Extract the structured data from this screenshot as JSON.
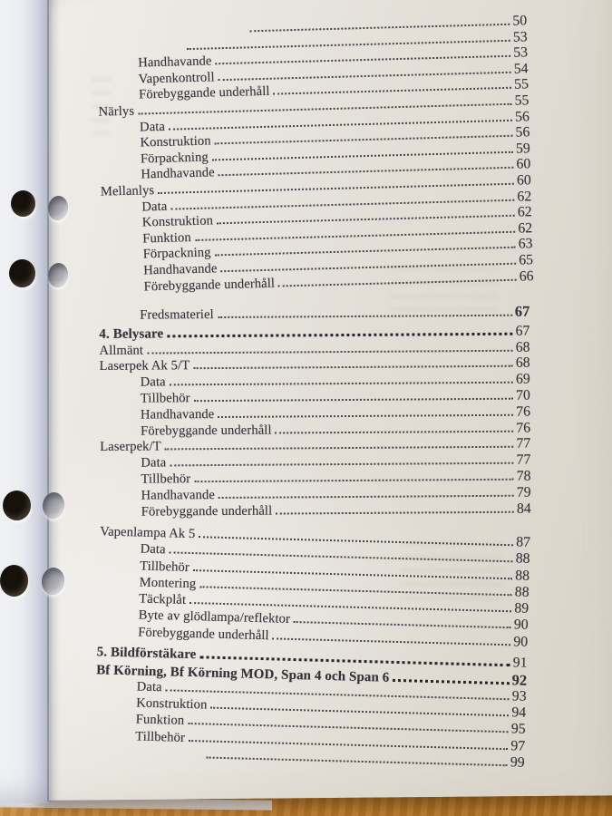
{
  "document": {
    "kind": "printed table of contents page (Swedish military manual), photographed in a binder on a wooden table",
    "toc": {
      "groups": {
        "a": [
          {
            "label": "",
            "num": "50",
            "level": 1,
            "pad": 120
          },
          {
            "label": "",
            "num": "53",
            "level": 1,
            "pad": 50
          },
          {
            "label": "Handhavande",
            "num": "53",
            "level": 1
          },
          {
            "label": "Vapenkontroll",
            "num": "54",
            "level": 1
          },
          {
            "label": "Förebyggande underhåll",
            "num": "55",
            "level": 1
          },
          {
            "label": "Närlys",
            "num": "55",
            "level": 0
          },
          {
            "label": "Data",
            "num": "56",
            "level": 1
          },
          {
            "label": "Konstruktion",
            "num": "56",
            "level": 1
          },
          {
            "label": "Förpackning",
            "num": "59",
            "level": 1
          },
          {
            "label": "Handhavande",
            "num": "60",
            "level": 1
          },
          {
            "label": "Mellanlys",
            "num": "60",
            "level": 0
          },
          {
            "label": "Data",
            "num": "62",
            "level": 1
          },
          {
            "label": "Konstruktion",
            "num": "62",
            "level": 1
          },
          {
            "label": "Funktion",
            "num": "62",
            "level": 1
          },
          {
            "label": "Förpackning",
            "num": "63",
            "level": 1
          },
          {
            "label": "Handhavande",
            "num": "65",
            "level": 1
          },
          {
            "label": "Förebyggande underhåll",
            "num": "66",
            "level": 1
          }
        ],
        "b": [
          {
            "label": "Fredsmateriel",
            "num": "67",
            "level": 1,
            "num_bold": true
          },
          {
            "label": "4. Belysare",
            "num": "67",
            "level": 0,
            "bold": true,
            "gap": 5
          },
          {
            "label": "Allmänt",
            "num": "68",
            "level": 0
          },
          {
            "label": "Laserpek Ak 5/T",
            "num": "68",
            "level": 0
          },
          {
            "label": "Data",
            "num": "69",
            "level": 1
          },
          {
            "label": "Tillbehör",
            "num": "70",
            "level": 1
          },
          {
            "label": "Handhavande",
            "num": "76",
            "level": 1
          },
          {
            "label": "Förebyggande underhåll",
            "num": "76",
            "level": 1
          },
          {
            "label": "Laserpek/T",
            "num": "77",
            "level": 0
          },
          {
            "label": "Data",
            "num": "77",
            "level": 1
          },
          {
            "label": "Tillbehör",
            "num": "78",
            "level": 1
          },
          {
            "label": "Handhavande",
            "num": "79",
            "level": 1
          },
          {
            "label": "Förebyggande underhåll",
            "num": "84",
            "level": 1
          }
        ],
        "c": [
          {
            "label": "Vapenlampa Ak 5",
            "num": "87",
            "level": 0
          },
          {
            "label": "Data",
            "num": "88",
            "level": 1
          },
          {
            "label": "Tillbehör",
            "num": "88",
            "level": 1
          },
          {
            "label": "Montering",
            "num": "88",
            "level": 1
          },
          {
            "label": "Täckplåt",
            "num": "89",
            "level": 1
          },
          {
            "label": "Byte av glödlampa/reflektor",
            "num": "90",
            "level": 1
          },
          {
            "label": "Förebyggande underhåll",
            "num": "90",
            "level": 1
          },
          {
            "label": "5. Bildförstäkare",
            "num": "91",
            "level": 0,
            "bold": true,
            "gap": 5
          },
          {
            "label": "Bf Körning, Bf Körning MOD, Span 4 och Span 6",
            "num": "92",
            "level": 0,
            "bold": true,
            "num_bold": true
          },
          {
            "label": "Data",
            "num": "93",
            "level": 1
          },
          {
            "label": "Konstruktion",
            "num": "94",
            "level": 1
          },
          {
            "label": "Funktion",
            "num": "95",
            "level": 1
          },
          {
            "label": "Tillbehör",
            "num": "97",
            "level": 1
          },
          {
            "label": "",
            "num": "99",
            "level": 1,
            "pad": 75
          }
        ]
      }
    }
  },
  "colors": {
    "wood": "#b5772b",
    "paper": "#e6e3dd",
    "left_page": "#e4e7ee",
    "ink": "#34333a"
  }
}
